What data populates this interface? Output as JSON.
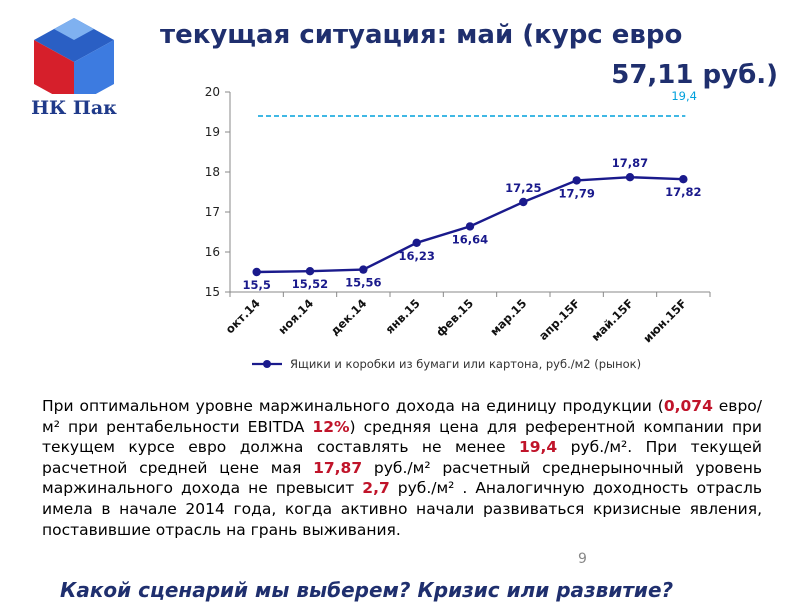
{
  "logo": {
    "text": "НК Пак"
  },
  "title": {
    "line1": "текущая ситуация: май (курс евро",
    "line2": "57,11 руб.)"
  },
  "chart_data": {
    "type": "line",
    "categories": [
      "окт.14",
      "ноя.14",
      "дек.14",
      "янв.15",
      "фев.15",
      "мар.15",
      "апр.15F",
      "май.15F",
      "июн.15F"
    ],
    "series": [
      {
        "name": "Ящики и коробки из бумаги или картона, руб./м2 (рынок)",
        "values": [
          15.5,
          15.52,
          15.56,
          16.23,
          16.64,
          17.25,
          17.79,
          17.87,
          17.82
        ],
        "labels": [
          "15,5",
          "15,52",
          "15,56",
          "16,23",
          "16,64",
          "17,25",
          "17,79",
          "17,87",
          "17,82"
        ],
        "color": "#1a1a8c"
      }
    ],
    "reference_line": {
      "value": 19.4,
      "label": "19,4",
      "color": "#00a0dc",
      "style": "dashed"
    },
    "ylim": [
      15,
      20
    ],
    "yticks": [
      15,
      16,
      17,
      18,
      19,
      20
    ],
    "grid": false,
    "legend": "bottom"
  },
  "text": {
    "p1": "При оптимальном уровне маржинального дохода на единицу продукции (",
    "v1": "0,074",
    "p2": " евро/м² при рентабельности EBITDA ",
    "v2": "12%",
    "p3": ") средняя цена для референтной компании при текущем курсе евро должна составлять не менее ",
    "v3": "19,4",
    "p4": " руб./м². При текущей расчетной средней цене мая ",
    "v4": "17,87",
    "p5": " руб./м² расчетный среднерыночный уровень маржинального дохода не превысит ",
    "v5": "2,7",
    "p6": " руб./м² . Аналогичную доходность отрасль имела в начале 2014 года, когда активно начали развиваться кризисные явления, поставившие отрасль на грань выживания."
  },
  "page_number": "9",
  "bottom_question": "Какой сценарий мы выберем? Кризис или развитие?",
  "colors": {
    "title": "#1f2f6e",
    "highlight": "#c0142a",
    "series": "#1a1a8c",
    "reference": "#00a0dc"
  }
}
